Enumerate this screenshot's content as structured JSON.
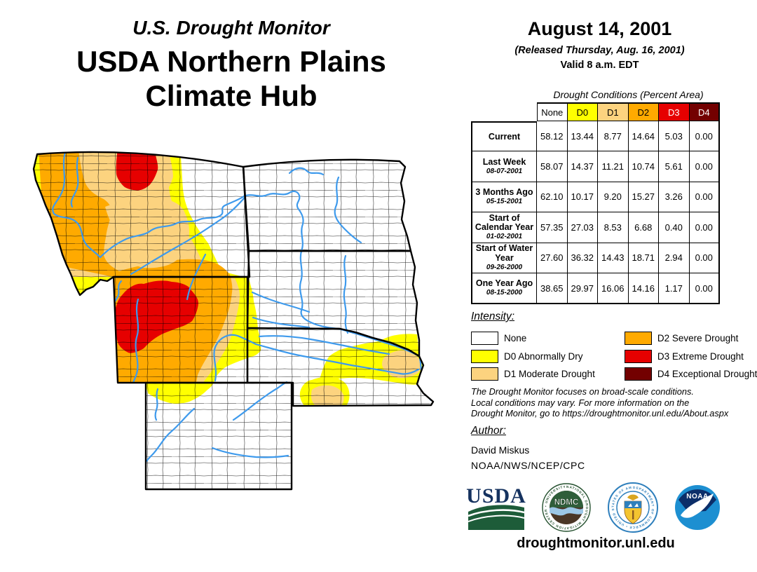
{
  "title": {
    "kicker": "U.S. Drought Monitor",
    "line1": "USDA Northern Plains",
    "line2": "Climate Hub"
  },
  "date_block": {
    "date": "August 14, 2001",
    "released": "(Released Thursday, Aug. 16, 2001)",
    "valid": "Valid 8 a.m. EDT"
  },
  "table": {
    "caption": "Drought Conditions (Percent Area)",
    "columns": [
      "None",
      "D0",
      "D1",
      "D2",
      "D3",
      "D4"
    ],
    "column_colors": [
      "#FFFFFF",
      "#FFFF00",
      "#FCD37F",
      "#FFAA00",
      "#E60000",
      "#730000"
    ],
    "column_text_colors": [
      "#000000",
      "#000000",
      "#000000",
      "#000000",
      "#FFFFFF",
      "#FFFFFF"
    ],
    "rows": [
      {
        "label": "Current",
        "date": "",
        "values": [
          "58.12",
          "13.44",
          "8.77",
          "14.64",
          "5.03",
          "0.00"
        ]
      },
      {
        "label": "Last Week",
        "date": "08-07-2001",
        "values": [
          "58.07",
          "14.37",
          "11.21",
          "10.74",
          "5.61",
          "0.00"
        ]
      },
      {
        "label": "3 Months Ago",
        "date": "05-15-2001",
        "values": [
          "62.10",
          "10.17",
          "9.20",
          "15.27",
          "3.26",
          "0.00"
        ]
      },
      {
        "label": "Start of Calendar Year",
        "date": "01-02-2001",
        "values": [
          "57.35",
          "27.03",
          "8.53",
          "6.68",
          "0.40",
          "0.00"
        ]
      },
      {
        "label": "Start of Water Year",
        "date": "09-26-2000",
        "values": [
          "27.60",
          "36.32",
          "14.43",
          "18.71",
          "2.94",
          "0.00"
        ]
      },
      {
        "label": "One Year Ago",
        "date": "08-15-2000",
        "values": [
          "38.65",
          "29.97",
          "16.06",
          "14.16",
          "1.17",
          "0.00"
        ]
      }
    ]
  },
  "legend": {
    "heading": "Intensity:",
    "items": [
      {
        "label": "None",
        "color": "#FFFFFF"
      },
      {
        "label": "D0 Abnormally Dry",
        "color": "#FFFF00"
      },
      {
        "label": "D1 Moderate Drought",
        "color": "#FCD37F"
      },
      {
        "label": "D2 Severe Drought",
        "color": "#FFAA00"
      },
      {
        "label": "D3 Extreme Drought",
        "color": "#E60000"
      },
      {
        "label": "D4 Exceptional Drought",
        "color": "#730000"
      }
    ]
  },
  "disclaimer_lines": [
    "The Drought Monitor focuses on broad-scale conditions.",
    "Local conditions may vary. For more information on the",
    "Drought Monitor, go to https://droughtmonitor.unl.edu/About.aspx"
  ],
  "author": {
    "heading": "Author:",
    "name": "David Miskus",
    "org": "NOAA/NWS/NCEP/CPC"
  },
  "logos": {
    "usda_text": "USDA",
    "ndmc_text": "NDMC",
    "ndmc_ring_text": "NATIONAL DROUGHT MITIGATION CENTER • UNIVERSITY OF NEBRASKA •",
    "doc_ring_text": "DEPARTMENT OF COMMERCE • UNITED STATES OF AMERICA •",
    "noaa_text": "NOAA"
  },
  "footer": {
    "url": "droughtmonitor.unl.edu"
  },
  "map_colors": {
    "river": "#3E9AEC",
    "state_border": "#000000",
    "county_line": "#000000"
  },
  "chart_data": {
    "type": "table",
    "title": "Drought Conditions (Percent Area)",
    "columns": [
      "None",
      "D0",
      "D1",
      "D2",
      "D3",
      "D4"
    ],
    "rows": [
      {
        "label": "Current",
        "values": [
          58.12,
          13.44,
          8.77,
          14.64,
          5.03,
          0.0
        ]
      },
      {
        "label": "Last Week 08-07-2001",
        "values": [
          58.07,
          14.37,
          11.21,
          10.74,
          5.61,
          0.0
        ]
      },
      {
        "label": "3 Months Ago 05-15-2001",
        "values": [
          62.1,
          10.17,
          9.2,
          15.27,
          3.26,
          0.0
        ]
      },
      {
        "label": "Start of Calendar Year 01-02-2001",
        "values": [
          57.35,
          27.03,
          8.53,
          6.68,
          0.4,
          0.0
        ]
      },
      {
        "label": "Start of Water Year 09-26-2000",
        "values": [
          27.6,
          36.32,
          14.43,
          18.71,
          2.94,
          0.0
        ]
      },
      {
        "label": "One Year Ago 08-15-2000",
        "values": [
          38.65,
          29.97,
          16.06,
          14.16,
          1.17,
          0.0
        ]
      }
    ],
    "units": "percent of area"
  }
}
